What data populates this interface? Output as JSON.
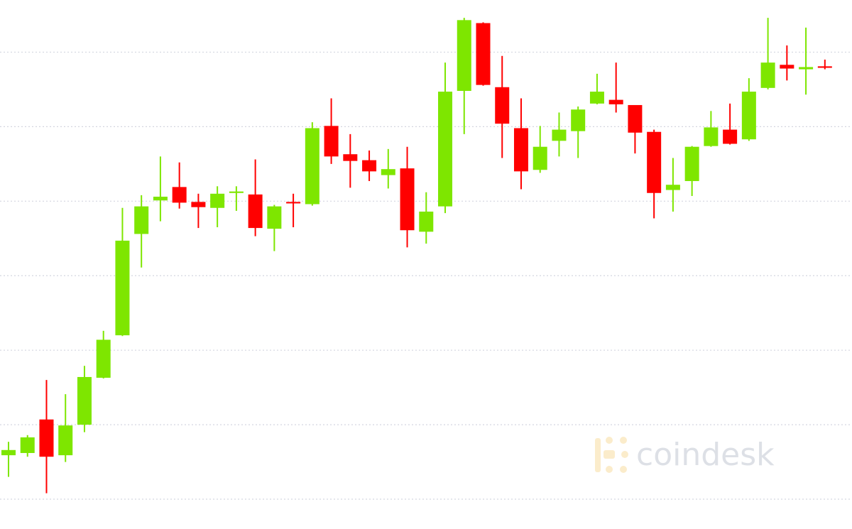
{
  "watermark": "coindesk",
  "chart_data": {
    "type": "candlestick",
    "open": [
      0.59,
      0.62,
      1.07,
      0.59,
      1.0,
      1.63,
      2.2,
      3.56,
      4.01,
      4.19,
      3.99,
      3.91,
      4.11,
      4.09,
      3.63,
      3.99,
      3.96,
      5.01,
      4.63,
      4.55,
      4.35,
      4.44,
      3.59,
      3.93,
      5.48,
      6.39,
      5.53,
      4.98,
      4.42,
      4.81,
      4.94,
      5.31,
      5.36,
      5.29,
      4.93,
      4.15,
      4.27,
      4.74,
      4.96,
      4.83,
      5.52,
      5.83,
      5.77,
      5.81
    ],
    "high": [
      0.77,
      0.86,
      1.6,
      1.41,
      1.79,
      2.26,
      3.91,
      4.08,
      4.6,
      4.52,
      4.1,
      4.2,
      4.2,
      4.56,
      3.95,
      4.1,
      5.06,
      5.38,
      4.9,
      4.68,
      4.7,
      4.73,
      4.12,
      5.86,
      6.46,
      6.4,
      5.95,
      5.38,
      5.01,
      5.19,
      5.27,
      5.71,
      5.86,
      5.29,
      4.96,
      4.58,
      4.74,
      5.21,
      5.31,
      5.65,
      6.46,
      6.09,
      6.33,
      5.9
    ],
    "low": [
      0.3,
      0.57,
      0.08,
      0.5,
      0.9,
      1.62,
      2.19,
      3.11,
      3.73,
      3.9,
      3.64,
      3.65,
      3.87,
      3.53,
      3.33,
      3.65,
      3.94,
      4.5,
      4.18,
      4.27,
      4.17,
      3.38,
      3.43,
      3.84,
      4.9,
      5.55,
      4.58,
      4.16,
      4.38,
      4.6,
      4.58,
      5.3,
      5.19,
      4.64,
      3.77,
      3.86,
      4.07,
      4.73,
      4.76,
      4.81,
      5.5,
      5.62,
      5.43,
      5.77
    ],
    "close": [
      0.66,
      0.83,
      0.57,
      0.99,
      1.64,
      2.14,
      3.47,
      3.93,
      4.06,
      3.98,
      3.92,
      4.1,
      4.13,
      3.64,
      3.93,
      3.97,
      4.98,
      4.6,
      4.54,
      4.4,
      4.43,
      3.61,
      3.86,
      5.47,
      6.43,
      5.56,
      5.04,
      4.4,
      4.73,
      4.96,
      5.23,
      5.47,
      5.3,
      4.92,
      4.11,
      4.22,
      4.73,
      4.99,
      4.77,
      5.47,
      5.86,
      5.78,
      5.8,
      5.79
    ],
    "up_color": "#7ee600",
    "down_color": "#ff0000",
    "ylim": [
      -0.4,
      6.7
    ],
    "yticks": [
      0,
      1,
      2,
      3,
      4,
      5,
      6
    ],
    "grid": true
  }
}
